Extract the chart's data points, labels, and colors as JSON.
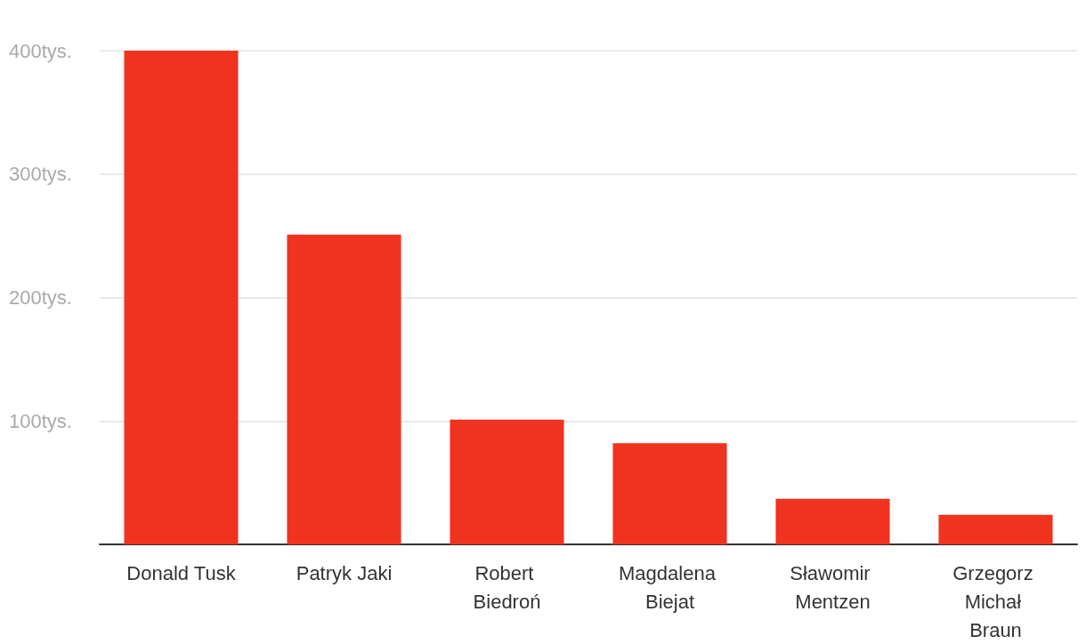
{
  "chart_data": {
    "type": "bar",
    "categories": [
      "Donald Tusk",
      "Patryk Jaki",
      "Robert Biedroń",
      "Magdalena Biejat",
      "Sławomir Mentzen",
      "Grzegorz Michał Braun"
    ],
    "values": [
      400,
      251,
      101,
      82,
      37,
      24
    ],
    "color": "#f0331e",
    "ylim": [
      0,
      400
    ],
    "yticks": [
      {
        "value": 0,
        "label": null
      },
      {
        "value": 100,
        "label": "100tys."
      },
      {
        "value": 200,
        "label": "200tys."
      },
      {
        "value": 300,
        "label": "300tys."
      },
      {
        "value": 400,
        "label": "400tys."
      }
    ],
    "grid": "y"
  }
}
